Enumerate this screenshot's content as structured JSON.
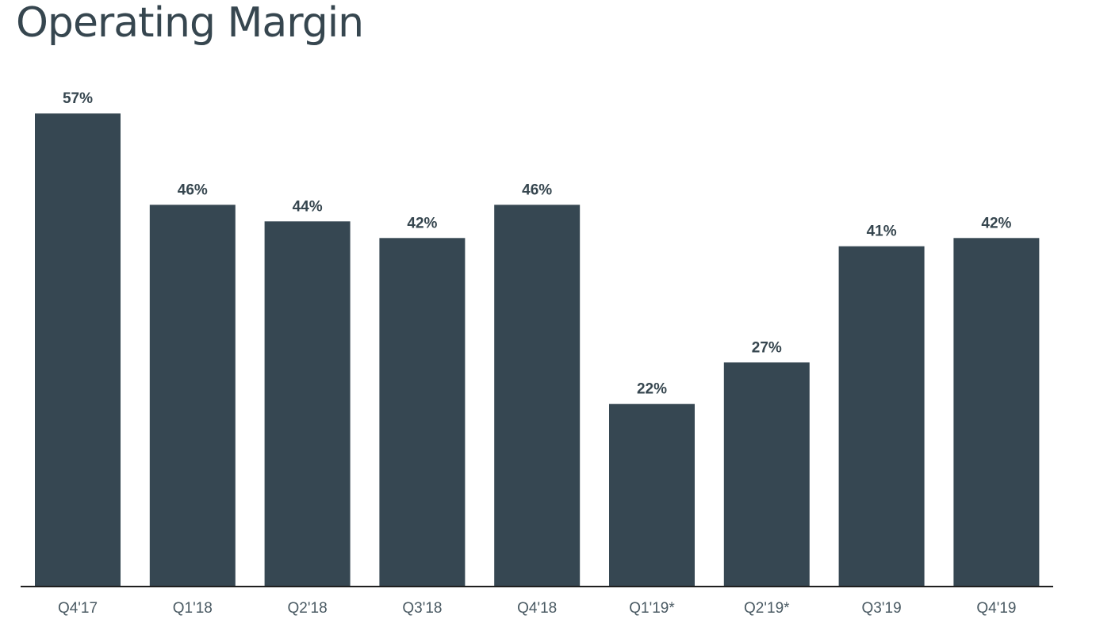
{
  "chart_data": {
    "type": "bar",
    "title": "Operating Margin",
    "categories": [
      "Q4'17",
      "Q1'18",
      "Q2'18",
      "Q3'18",
      "Q4'18",
      "Q1'19*",
      "Q2'19*",
      "Q3'19",
      "Q4'19"
    ],
    "values": [
      57,
      46,
      44,
      42,
      46,
      22,
      27,
      41,
      42
    ],
    "data_labels": [
      "57%",
      "46%",
      "44%",
      "42%",
      "46%",
      "22%",
      "27%",
      "41%",
      "42%"
    ],
    "unit": "%",
    "ylim": [
      0,
      60
    ],
    "grid": false,
    "legend": "none",
    "colors": {
      "bar": "#364752",
      "axis": "#1f1f1f",
      "text": "#36464f"
    }
  }
}
